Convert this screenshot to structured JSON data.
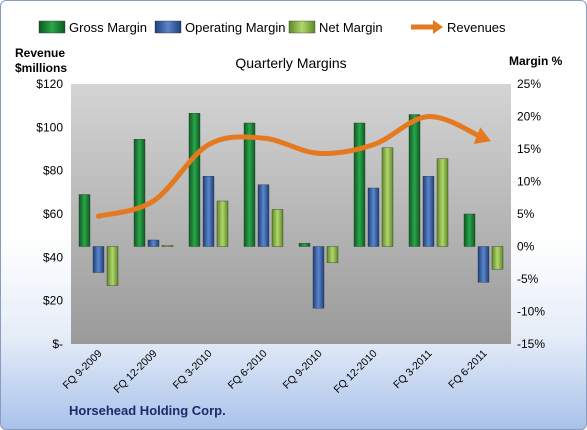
{
  "company": "Horsehead Holding Corp.",
  "chart_data": {
    "type": "bar",
    "title": "Quarterly Margins",
    "categories": [
      "FQ 9-2009",
      "FQ 12-2009",
      "FQ 3-2010",
      "FQ 6-2010",
      "FQ 9-2010",
      "FQ 12-2010",
      "FQ 3-2011",
      "FQ 6-2011"
    ],
    "series": [
      {
        "name": "Gross Margin",
        "kind": "bar",
        "axis": "right",
        "color": "#1f8a3a",
        "values": [
          8.0,
          16.5,
          20.5,
          19.0,
          0.5,
          19.0,
          20.3,
          5.0
        ]
      },
      {
        "name": "Operating Margin",
        "kind": "bar",
        "axis": "right",
        "color": "#3a63a8",
        "values": [
          -4.0,
          1.0,
          10.8,
          9.5,
          -9.5,
          9.0,
          10.8,
          -5.5
        ]
      },
      {
        "name": "Net Margin",
        "kind": "bar",
        "axis": "right",
        "color": "#8fbc4a",
        "values": [
          -6.0,
          0.2,
          7.0,
          5.7,
          -2.5,
          15.2,
          13.5,
          -3.5
        ]
      },
      {
        "name": "Revenues",
        "kind": "line",
        "axis": "left",
        "color": "#e4791f",
        "values": [
          59,
          66,
          92,
          95,
          88,
          92,
          105,
          95
        ]
      }
    ],
    "left_axis": {
      "title_lines": [
        "Revenue",
        "$millions"
      ],
      "min": 0,
      "max": 120,
      "ticks": [
        0,
        20,
        40,
        60,
        80,
        100,
        120
      ],
      "tick_labels": [
        "$-",
        "$20",
        "$40",
        "$60",
        "$80",
        "$100",
        "$120"
      ]
    },
    "right_axis": {
      "title": "Margin %",
      "min": -15,
      "max": 25,
      "ticks": [
        -15,
        -10,
        -5,
        0,
        5,
        10,
        15,
        20,
        25
      ],
      "tick_labels": [
        "-15%",
        "-10%",
        "-5%",
        "0%",
        "5%",
        "10%",
        "15%",
        "20%",
        "25%"
      ]
    },
    "legend": {
      "placement": "top",
      "items": [
        "Gross Margin",
        "Operating Margin",
        "Net Margin",
        "Revenues"
      ]
    },
    "grid": false
  }
}
